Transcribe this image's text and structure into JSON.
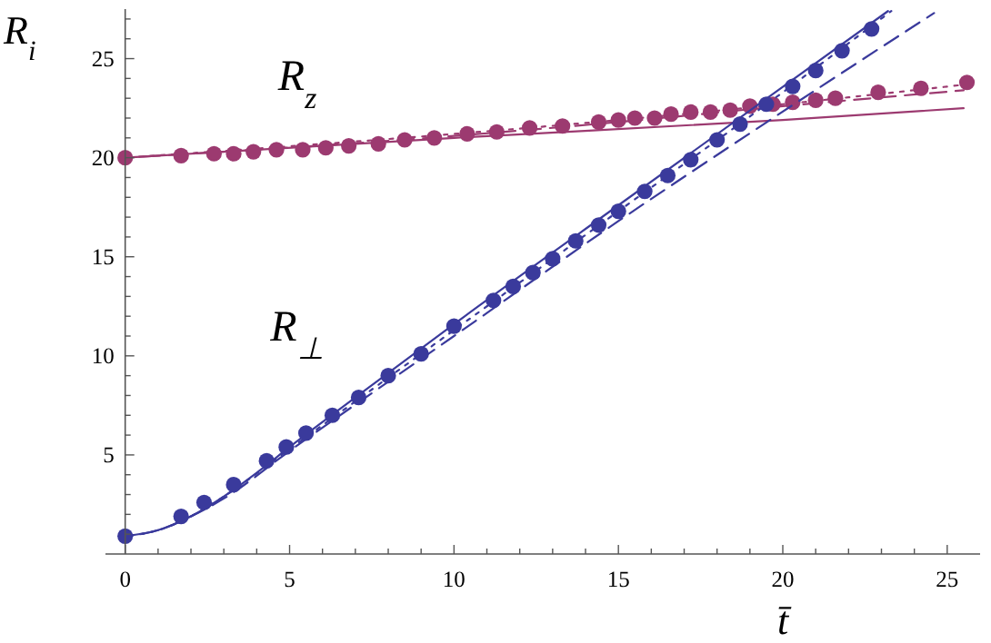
{
  "chart_data": {
    "type": "scatter",
    "xlabel": "t̄",
    "ylabel": "R$_{i}$",
    "xlim": [
      -0.6,
      26
    ],
    "ylim": [
      0,
      27.5
    ],
    "xticks": [
      0,
      {
        "value": 1,
        "label": null
      },
      {
        "value": 2,
        "label": null
      },
      {
        "value": 3,
        "label": null
      },
      {
        "value": 4,
        "label": null
      },
      5,
      {
        "value": 6,
        "label": null
      },
      {
        "value": 7,
        "label": null
      },
      {
        "value": 8,
        "label": null
      },
      {
        "value": 9,
        "label": null
      },
      10,
      {
        "value": 11,
        "label": null
      },
      {
        "value": 12,
        "label": null
      },
      {
        "value": 13,
        "label": null
      },
      {
        "value": 14,
        "label": null
      },
      15,
      {
        "value": 16,
        "label": null
      },
      {
        "value": 17,
        "label": null
      },
      {
        "value": 18,
        "label": null
      },
      {
        "value": 19,
        "label": null
      },
      20,
      {
        "value": 21,
        "label": null
      },
      {
        "value": 22,
        "label": null
      },
      {
        "value": 23,
        "label": null
      },
      {
        "value": 24,
        "label": null
      },
      25
    ],
    "yticks": [
      {
        "value": 1,
        "label": null
      },
      {
        "value": 2,
        "label": null
      },
      {
        "value": 3,
        "label": null
      },
      {
        "value": 4,
        "label": null
      },
      5,
      {
        "value": 6,
        "label": null
      },
      {
        "value": 7,
        "label": null
      },
      {
        "value": 8,
        "label": null
      },
      {
        "value": 9,
        "label": null
      },
      10,
      {
        "value": 11,
        "label": null
      },
      {
        "value": 12,
        "label": null
      },
      {
        "value": 13,
        "label": null
      },
      {
        "value": 14,
        "label": null
      },
      15,
      {
        "value": 16,
        "label": null
      },
      {
        "value": 17,
        "label": null
      },
      {
        "value": 18,
        "label": null
      },
      {
        "value": 19,
        "label": null
      },
      20,
      {
        "value": 21,
        "label": null
      },
      {
        "value": 22,
        "label": null
      },
      {
        "value": 23,
        "label": null
      },
      {
        "value": 24,
        "label": null
      },
      25,
      {
        "value": 26,
        "label": null
      },
      {
        "value": 27,
        "label": null
      }
    ],
    "grid": false,
    "annotations": [
      "R$_{z}$",
      "R$_{⊥}$"
    ],
    "series": [
      {
        "type": "line",
        "color": "#9c3a70",
        "line_style": "solid",
        "x": [
          0,
          10,
          20,
          25.5
        ],
        "values": [
          20,
          21,
          21.9,
          22.5
        ]
      },
      {
        "type": "line",
        "color": "#9c3a70",
        "line_style": "dashed",
        "x": [
          0,
          10,
          15,
          20,
          25.5
        ],
        "values": [
          20,
          21.1,
          21.8,
          22.6,
          23.4
        ]
      },
      {
        "type": "line",
        "color": "#9c3a70",
        "line_style": "dotted",
        "x": [
          0,
          10,
          15,
          20,
          25.6
        ],
        "values": [
          20,
          21.2,
          21.9,
          22.7,
          23.7
        ]
      },
      {
        "color": "#9c3a70",
        "marker": "circle",
        "x": [
          0,
          1.7,
          2.7,
          3.3,
          3.9,
          4.6,
          5.4,
          6.1,
          6.8,
          7.7,
          8.5,
          9.4,
          10.4,
          11.3,
          12.3,
          13.3,
          14.4,
          15.0,
          15.5,
          16.1,
          16.6,
          17.2,
          17.8,
          18.4,
          19.0,
          19.7,
          20.3,
          21.0,
          21.6,
          22.9,
          24.2,
          25.6
        ],
        "values": [
          20,
          20.1,
          20.2,
          20.2,
          20.3,
          20.4,
          20.4,
          20.5,
          20.6,
          20.7,
          20.9,
          21.0,
          21.2,
          21.3,
          21.5,
          21.6,
          21.8,
          21.9,
          22.0,
          22.0,
          22.2,
          22.3,
          22.3,
          22.4,
          22.6,
          22.7,
          22.8,
          22.9,
          23.0,
          23.3,
          23.5,
          23.8
        ]
      },
      {
        "type": "line",
        "color": "#3a3a9c",
        "line_style": "solid",
        "x": [
          0,
          1,
          2,
          3,
          4,
          5,
          7,
          10,
          15,
          23.2
        ],
        "values": [
          0.9,
          1.2,
          1.9,
          2.9,
          4.1,
          5.4,
          7.9,
          11.6,
          17.6,
          27.4
        ]
      },
      {
        "type": "line",
        "color": "#3a3a9c",
        "line_style": "dashed",
        "x": [
          0,
          1,
          2,
          3,
          5,
          10,
          15,
          19.7,
          24.6
        ],
        "values": [
          0.9,
          1.2,
          1.9,
          2.8,
          5.2,
          11.0,
          16.8,
          22.0,
          27.3
        ]
      },
      {
        "type": "line",
        "color": "#3a3a9c",
        "line_style": "dotted",
        "x": [
          0,
          1,
          2,
          3,
          5,
          10,
          15,
          20,
          23.3
        ],
        "values": [
          0.9,
          1.2,
          1.9,
          2.9,
          5.3,
          11.3,
          17.3,
          23.3,
          27.4
        ]
      },
      {
        "color": "#3a3a9c",
        "marker": "circle",
        "x": [
          0,
          1.7,
          2.4,
          3.3,
          4.3,
          4.9,
          5.5,
          6.3,
          7.1,
          8.0,
          9.0,
          10.0,
          11.2,
          11.8,
          12.4,
          13.0,
          13.7,
          14.4,
          15.0,
          15.8,
          16.5,
          17.2,
          18.0,
          18.7,
          19.5,
          20.3,
          21.0,
          21.8,
          22.7
        ],
        "values": [
          0.9,
          1.9,
          2.6,
          3.5,
          4.7,
          5.4,
          6.1,
          7.0,
          7.9,
          9.0,
          10.1,
          11.5,
          12.8,
          13.5,
          14.2,
          14.9,
          15.8,
          16.6,
          17.3,
          18.3,
          19.1,
          19.9,
          20.9,
          21.7,
          22.7,
          23.6,
          24.4,
          25.4,
          26.5
        ]
      }
    ]
  }
}
